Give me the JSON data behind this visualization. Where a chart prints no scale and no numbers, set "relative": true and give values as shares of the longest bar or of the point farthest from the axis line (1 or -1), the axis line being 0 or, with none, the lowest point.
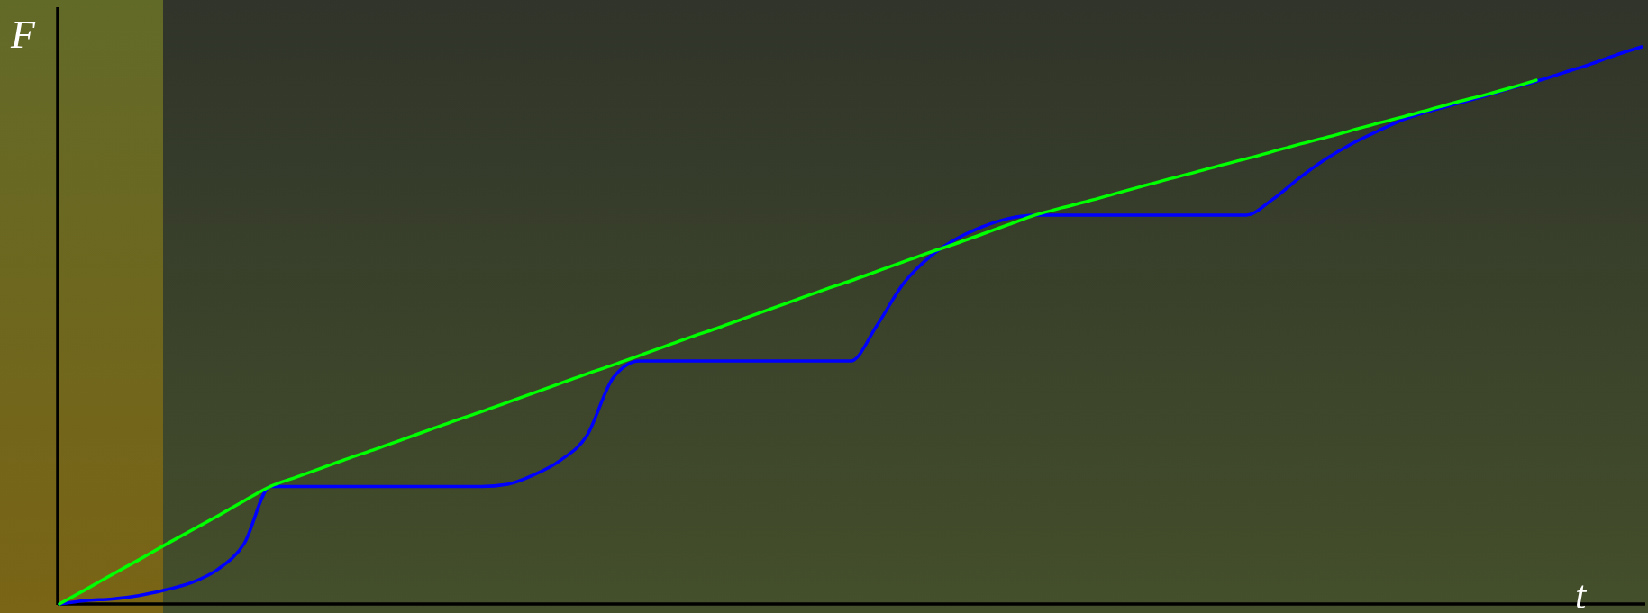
{
  "chart_data": {
    "type": "line",
    "relative": true,
    "xlabel": "t",
    "ylabel": "F",
    "marker": "none",
    "line_style": "solid",
    "categories": [
      null,
      null,
      null,
      null,
      null,
      null,
      null,
      null,
      null,
      null,
      null,
      null,
      null,
      null,
      null,
      null,
      null,
      null,
      null,
      null,
      null,
      null,
      null,
      null,
      null,
      null,
      null,
      null,
      null,
      null,
      null,
      null,
      null,
      null,
      null,
      null,
      null,
      null,
      null,
      null,
      null,
      null,
      null,
      null,
      null,
      null,
      null,
      null,
      null,
      null,
      null,
      null,
      null,
      null,
      null,
      null,
      null,
      null,
      null,
      null,
      null
    ],
    "series": [
      {
        "color": "#0000ff",
        "values": [
          0,
          0.006,
          0.009,
          0.015,
          0.025,
          0.038,
          0.062,
          0.108,
          0.211,
          0.211,
          0.211,
          0.211,
          0.211,
          0.211,
          0.211,
          0.211,
          0.211,
          0.215,
          0.232,
          0.258,
          0.302,
          0.406,
          0.436,
          0.436,
          0.436,
          0.436,
          0.436,
          0.436,
          0.436,
          0.436,
          0.436,
          0.5,
          0.575,
          0.623,
          0.655,
          0.677,
          0.692,
          0.698,
          0.698,
          0.698,
          0.698,
          0.698,
          0.698,
          0.698,
          0.698,
          0.698,
          0.726,
          0.764,
          0.798,
          0.826,
          0.849,
          0.87,
          0.885,
          0.898,
          0.911,
          0.925,
          0.938,
          0.953,
          0.968,
          0.985,
          1
        ]
      },
      {
        "color": "#00ff00",
        "values": [
          0,
          0.026,
          0.053,
          0.079,
          0.106,
          0.132,
          0.158,
          0.185,
          0.211,
          0.228,
          0.245,
          0.262,
          0.278,
          0.295,
          0.312,
          0.329,
          0.345,
          0.362,
          0.379,
          0.396,
          0.413,
          0.429,
          0.446,
          0.463,
          0.48,
          0.496,
          0.513,
          0.53,
          0.547,
          0.564,
          0.58,
          0.597,
          0.614,
          0.631,
          0.647,
          0.664,
          0.681,
          0.698,
          0.711,
          0.723,
          0.736,
          0.749,
          0.762,
          0.774,
          0.787,
          0.799,
          0.812,
          0.825,
          0.837,
          0.85,
          0.863,
          0.875,
          0.888,
          0.901,
          0.913,
          0.926,
          0.94,
          null,
          null,
          null,
          null
        ]
      }
    ]
  }
}
